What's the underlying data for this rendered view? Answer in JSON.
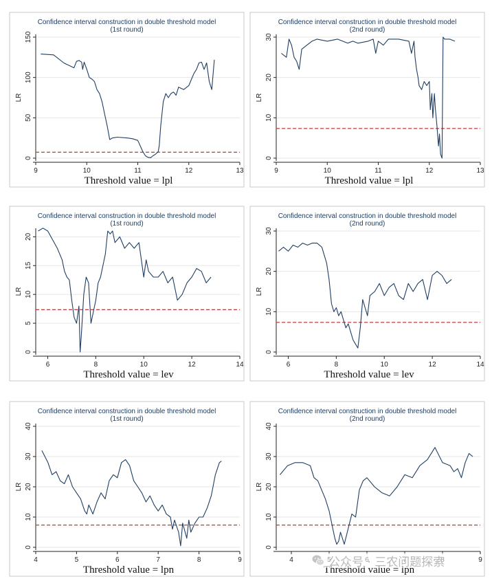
{
  "style": {
    "line_color": "#1f3d62",
    "threshold_color": "#c0393f",
    "frame_color": "#c9c9c9",
    "grid_color": "#e6e6e6",
    "text_color": "#1f3d62"
  },
  "watermark": {
    "text": "公众号 · 三农问题探索",
    "icon": "wechat-icon"
  },
  "chart_data": [
    {
      "type": "line",
      "title": "Confidence interval construction in double threshold model",
      "subtitle": "(1st round)",
      "xlabel": "Threshold value = lpl",
      "ylabel": "LR",
      "xlim": [
        9,
        13
      ],
      "ylim": [
        0,
        150
      ],
      "xticks": [
        9,
        10,
        11,
        12,
        13
      ],
      "yticks": [
        0,
        50,
        100,
        150
      ],
      "critical_value": 7.35,
      "series": [
        {
          "name": "LR",
          "x": [
            9.1,
            9.35,
            9.55,
            9.75,
            9.8,
            9.85,
            9.9,
            9.92,
            9.95,
            10.0,
            10.05,
            10.1,
            10.15,
            10.2,
            10.25,
            10.3,
            10.35,
            10.4,
            10.45,
            10.5,
            10.6,
            10.8,
            10.9,
            11.0,
            11.05,
            11.1,
            11.15,
            11.2,
            11.25,
            11.3,
            11.35,
            11.4,
            11.42,
            11.45,
            11.5,
            11.55,
            11.6,
            11.65,
            11.7,
            11.75,
            11.8,
            11.9,
            12.0,
            12.1,
            12.15,
            12.2,
            12.25,
            12.3,
            12.35,
            12.4,
            12.45,
            12.5
          ],
          "y": [
            129,
            128,
            118,
            112,
            120,
            121,
            119,
            110,
            119,
            110,
            100,
            98,
            95,
            85,
            80,
            70,
            55,
            40,
            23,
            25,
            26,
            25,
            24,
            22,
            15,
            8,
            3,
            1,
            0.5,
            3,
            5,
            8,
            15,
            40,
            70,
            80,
            75,
            80,
            82,
            78,
            88,
            85,
            90,
            105,
            110,
            118,
            119,
            110,
            118,
            95,
            85,
            122
          ]
        }
      ]
    },
    {
      "type": "line",
      "title": "Confidence interval construction in double threshold model",
      "subtitle": "(2nd round)",
      "xlabel": "Threshold value = lpl",
      "ylabel": "LR",
      "xlim": [
        9,
        13
      ],
      "ylim": [
        0,
        30
      ],
      "xticks": [
        9,
        10,
        11,
        12,
        13
      ],
      "yticks": [
        0,
        10,
        20,
        30
      ],
      "critical_value": 7.35,
      "series": [
        {
          "name": "LR",
          "x": [
            9.1,
            9.2,
            9.25,
            9.3,
            9.35,
            9.4,
            9.45,
            9.5,
            9.6,
            9.7,
            9.8,
            10.0,
            10.2,
            10.4,
            10.5,
            10.6,
            10.8,
            10.9,
            10.95,
            11.0,
            11.1,
            11.2,
            11.4,
            11.6,
            11.65,
            11.7,
            11.72,
            11.75,
            11.78,
            11.8,
            11.85,
            11.9,
            11.95,
            12.0,
            12.02,
            12.05,
            12.07,
            12.1,
            12.12,
            12.15,
            12.18,
            12.2,
            12.22,
            12.25,
            12.27,
            12.3,
            12.4,
            12.5
          ],
          "y": [
            26,
            25,
            29.5,
            28,
            25,
            24,
            22,
            27,
            28,
            29,
            29.5,
            29,
            29.5,
            28.5,
            29,
            28.5,
            29,
            29.5,
            26,
            29,
            28,
            29.5,
            29.5,
            29,
            26,
            29,
            25,
            22,
            20,
            18,
            17,
            19,
            18,
            19,
            12,
            16,
            10,
            16,
            12,
            8,
            3,
            6,
            1,
            0,
            30,
            29.5,
            29.5,
            29
          ]
        }
      ]
    },
    {
      "type": "line",
      "title": "Confidence interval construction in double threshold model",
      "subtitle": "(1st round)",
      "xlabel": "Threshold value = lev",
      "ylabel": "LR",
      "xlim": [
        5.5,
        14
      ],
      "ylim": [
        0,
        21
      ],
      "xticks": [
        6,
        8,
        10,
        12,
        14
      ],
      "yticks": [
        0,
        5,
        10,
        15,
        20
      ],
      "critical_value": 7.35,
      "series": [
        {
          "name": "LR",
          "x": [
            5.6,
            5.8,
            6.0,
            6.2,
            6.4,
            6.6,
            6.7,
            6.8,
            6.9,
            7.0,
            7.1,
            7.2,
            7.3,
            7.35,
            7.4,
            7.5,
            7.6,
            7.7,
            7.8,
            7.9,
            8.0,
            8.1,
            8.2,
            8.3,
            8.4,
            8.5,
            8.6,
            8.7,
            8.8,
            9.0,
            9.2,
            9.4,
            9.6,
            9.8,
            10.0,
            10.1,
            10.2,
            10.4,
            10.6,
            10.8,
            11.0,
            11.2,
            11.4,
            11.6,
            11.8,
            12.0,
            12.2,
            12.4,
            12.6,
            12.8
          ],
          "y": [
            21,
            21.5,
            21,
            19.5,
            18,
            16,
            14,
            13,
            12.5,
            9,
            6,
            5,
            8,
            0,
            3,
            10,
            13,
            12,
            5,
            7,
            9,
            12,
            13,
            15,
            17,
            21,
            20.5,
            21,
            19,
            20,
            18,
            19,
            18,
            19,
            13,
            16,
            14,
            13,
            13,
            14,
            12,
            13,
            9,
            10,
            12,
            13,
            14.5,
            14,
            12,
            13
          ]
        }
      ]
    },
    {
      "type": "line",
      "title": "Confidence interval construction in double threshold model",
      "subtitle": "(2nd round)",
      "xlabel": "Threshold value = lev",
      "ylabel": "LR",
      "xlim": [
        5.5,
        14
      ],
      "ylim": [
        0,
        30
      ],
      "xticks": [
        6,
        8,
        10,
        12,
        14
      ],
      "yticks": [
        0,
        10,
        20,
        30
      ],
      "critical_value": 7.35,
      "series": [
        {
          "name": "LR",
          "x": [
            5.6,
            5.8,
            6.0,
            6.2,
            6.4,
            6.6,
            6.8,
            7.0,
            7.2,
            7.4,
            7.5,
            7.6,
            7.7,
            7.8,
            7.9,
            8.0,
            8.1,
            8.2,
            8.3,
            8.4,
            8.5,
            8.6,
            8.7,
            8.8,
            8.9,
            9.0,
            9.1,
            9.2,
            9.3,
            9.4,
            9.6,
            9.8,
            10.0,
            10.2,
            10.4,
            10.6,
            10.8,
            11.0,
            11.2,
            11.4,
            11.6,
            11.8,
            12.0,
            12.2,
            12.4,
            12.6,
            12.8
          ],
          "y": [
            25,
            26,
            25,
            26.5,
            26,
            27,
            26.5,
            27,
            27,
            26,
            24,
            22,
            18,
            12,
            10,
            11,
            9,
            10,
            8,
            6,
            7,
            5,
            3,
            2,
            1,
            6,
            13,
            11,
            9,
            14,
            15,
            17,
            14,
            16,
            17,
            14,
            13,
            17,
            15,
            17,
            18,
            13,
            19,
            20,
            19,
            17,
            18
          ]
        }
      ]
    },
    {
      "type": "line",
      "title": "Confidence interval construction in double threshold model",
      "subtitle": "(1st round)",
      "xlabel": "Threshold value = lpn",
      "ylabel": "LR",
      "xlim": [
        4,
        9
      ],
      "ylim": [
        0,
        40
      ],
      "xticks": [
        4,
        5,
        6,
        7,
        8,
        9
      ],
      "yticks": [
        0,
        10,
        20,
        30,
        40
      ],
      "critical_value": 7.35,
      "series": [
        {
          "name": "LR",
          "x": [
            4.15,
            4.3,
            4.4,
            4.5,
            4.6,
            4.7,
            4.8,
            4.9,
            5.0,
            5.1,
            5.2,
            5.25,
            5.3,
            5.4,
            5.5,
            5.6,
            5.7,
            5.8,
            5.9,
            6.0,
            6.1,
            6.2,
            6.3,
            6.4,
            6.5,
            6.6,
            6.7,
            6.8,
            6.9,
            7.0,
            7.1,
            7.2,
            7.3,
            7.35,
            7.4,
            7.5,
            7.55,
            7.6,
            7.7,
            7.75,
            7.8,
            7.9,
            8.0,
            8.1,
            8.2,
            8.3,
            8.4,
            8.5,
            8.55
          ],
          "y": [
            32,
            28,
            24,
            25,
            22,
            21,
            24,
            20,
            18,
            16,
            12,
            11,
            14,
            11,
            15,
            18,
            16,
            22,
            24,
            23,
            28,
            29,
            27,
            22,
            20,
            18,
            15,
            17,
            14,
            12,
            14,
            11,
            10,
            6,
            9,
            5,
            0.5,
            8,
            3,
            9,
            5,
            8,
            10,
            10,
            13,
            17,
            24,
            28,
            28.5
          ]
        }
      ]
    },
    {
      "type": "line",
      "title": "Confidence interval construction in double threshold model",
      "subtitle": "(2nd round)",
      "xlabel": "Threshold value = lpn",
      "ylabel": "LR",
      "xlim": [
        3.6,
        9
      ],
      "ylim": [
        0,
        40
      ],
      "xticks": [
        4,
        5,
        6,
        7,
        8,
        9
      ],
      "yticks": [
        0,
        10,
        20,
        30,
        40
      ],
      "critical_value": 7.35,
      "series": [
        {
          "name": "LR",
          "x": [
            3.7,
            3.9,
            4.1,
            4.3,
            4.5,
            4.6,
            4.7,
            4.8,
            4.9,
            5.0,
            5.1,
            5.15,
            5.2,
            5.25,
            5.3,
            5.35,
            5.4,
            5.5,
            5.6,
            5.7,
            5.8,
            5.9,
            6.0,
            6.2,
            6.4,
            6.6,
            6.8,
            7.0,
            7.2,
            7.4,
            7.6,
            7.8,
            8.0,
            8.2,
            8.3,
            8.4,
            8.5,
            8.6,
            8.7,
            8.8
          ],
          "y": [
            24,
            27,
            28,
            28,
            27,
            23,
            22,
            19,
            16,
            12,
            6,
            3,
            1,
            2,
            5,
            3,
            1,
            6,
            11,
            10,
            19,
            22,
            23,
            20,
            18,
            17,
            20,
            24,
            23,
            27,
            29,
            33,
            28,
            27,
            25,
            26,
            23,
            28,
            31,
            30
          ]
        }
      ]
    }
  ]
}
